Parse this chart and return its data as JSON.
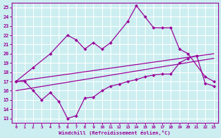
{
  "xlabel": "Windchill (Refroidissement éolien,°C)",
  "background_color": "#cceef0",
  "grid_color": "#ffffff",
  "line_color": "#990099",
  "x_ticks": [
    0,
    1,
    2,
    3,
    4,
    5,
    6,
    7,
    8,
    9,
    10,
    11,
    12,
    13,
    14,
    15,
    16,
    17,
    18,
    19,
    20,
    21,
    22,
    23
  ],
  "y_ticks": [
    13,
    14,
    15,
    16,
    17,
    18,
    19,
    20,
    21,
    22,
    23,
    24,
    25
  ],
  "xlim": [
    -0.5,
    23.5
  ],
  "ylim": [
    12.5,
    25.5
  ],
  "series": [
    {
      "x": [
        0,
        1,
        2,
        3,
        4,
        5,
        6,
        7,
        8,
        9,
        10,
        11,
        12,
        13,
        14,
        15,
        16,
        17,
        18,
        19,
        20,
        21,
        22,
        23
      ],
      "y": [
        17.0,
        17.0,
        16.0,
        15.0,
        15.8,
        14.8,
        13.0,
        13.3,
        15.2,
        15.3,
        16.0,
        16.5,
        16.7,
        17.0,
        17.2,
        17.5,
        17.7,
        17.8,
        17.8,
        19.0,
        19.5,
        19.8,
        16.8,
        16.5
      ],
      "has_markers": true
    },
    {
      "x": [
        0,
        2,
        4,
        6,
        7,
        8,
        9,
        10,
        11,
        13,
        14,
        15,
        16,
        17,
        18,
        19,
        20,
        22,
        23
      ],
      "y": [
        17.0,
        18.5,
        20.0,
        22.0,
        21.5,
        20.5,
        21.2,
        20.5,
        21.2,
        23.5,
        25.2,
        24.0,
        22.8,
        22.8,
        22.8,
        20.5,
        20.0,
        17.5,
        17.0
      ],
      "has_markers": true
    },
    {
      "x": [
        0,
        23
      ],
      "y": [
        17.0,
        20.0
      ],
      "has_markers": false
    },
    {
      "x": [
        0,
        23
      ],
      "y": [
        16.0,
        19.5
      ],
      "has_markers": false
    }
  ]
}
